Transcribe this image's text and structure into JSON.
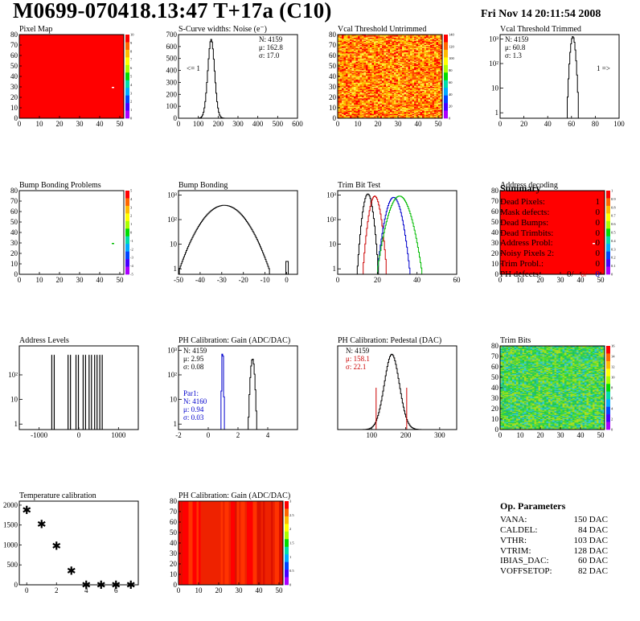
{
  "header": {
    "title": "M0699-070418.13:47 T+17a (C10)",
    "date": "Fri Nov 14 20:11:54 2008"
  },
  "summary": {
    "title": "Summary",
    "rows": [
      {
        "label": "Dead Pixels:",
        "value": "1"
      },
      {
        "label": "Mask defects:",
        "value": "0"
      },
      {
        "label": "Dead Bumps:",
        "value": "0"
      },
      {
        "label": "Dead Trimbits:",
        "value": "0"
      },
      {
        "label": "Address Probl:",
        "value": "0"
      },
      {
        "label": "Noisy Pixels 2:",
        "value": "0"
      },
      {
        "label": "Trim Probl.:",
        "value": "0"
      }
    ],
    "ph_defects": {
      "label": "PH defects:",
      "values": [
        "0/",
        "0/",
        "0"
      ],
      "colors": [
        "#000000",
        "#cc0000",
        "#0000cc"
      ]
    }
  },
  "op_params": {
    "title": "Op. Parameters",
    "rows": [
      {
        "label": "VANA:",
        "value": "150 DAC"
      },
      {
        "label": "CALDEL:",
        "value": "84 DAC"
      },
      {
        "label": "VTHR:",
        "value": "103 DAC"
      },
      {
        "label": "VTRIM:",
        "value": "128 DAC"
      },
      {
        "label": "IBIAS_DAC:",
        "value": "60 DAC"
      },
      {
        "label": "VOFFSETOP:",
        "value": "82 DAC"
      }
    ]
  },
  "chart_data": [
    {
      "id": "pixel_map",
      "type": "heatmap",
      "title": "Pixel Map",
      "xlim": [
        0,
        52
      ],
      "ylim": [
        0,
        80
      ],
      "xticks": [
        0,
        10,
        20,
        30,
        40,
        50
      ],
      "yticks": [
        0,
        10,
        20,
        30,
        40,
        50,
        60,
        70,
        80
      ],
      "fill": "uniform",
      "fill_color": "#ff0000",
      "highlights": [
        {
          "x": 46,
          "y": 30,
          "color": "#ffffff"
        }
      ],
      "zlim": [
        0,
        10
      ],
      "zticks": [
        "0",
        "1",
        "2",
        "3",
        "4",
        "5",
        "6",
        "7",
        "8",
        "9",
        "10"
      ]
    },
    {
      "id": "scurve_noise",
      "type": "line",
      "title": "S-Curve widths: Noise (e⁻)",
      "xlim": [
        0,
        600
      ],
      "ylim": [
        0,
        700
      ],
      "xticks": [
        0,
        100,
        200,
        300,
        400,
        500,
        600
      ],
      "yticks": [
        0,
        100,
        200,
        300,
        400,
        500,
        600,
        700
      ],
      "stats": [
        "N: 4159",
        "μ: 162.8",
        "σ: 17.0"
      ],
      "annotation": "<= 1",
      "curves": [
        {
          "type": "gauss",
          "mean": 162.8,
          "sigma": 17.0,
          "peak": 660,
          "color": "#000000"
        }
      ]
    },
    {
      "id": "vcal_untrimmed",
      "type": "heatmap",
      "title": "Vcal Threshold Untrimmed",
      "xlim": [
        0,
        52
      ],
      "ylim": [
        0,
        80
      ],
      "xticks": [
        0,
        10,
        20,
        30,
        40,
        50
      ],
      "yticks": [
        0,
        10,
        20,
        30,
        40,
        50,
        60,
        70,
        80
      ],
      "fill": "noise",
      "palette": [
        "#ff0000",
        "#ff4400",
        "#ff7700",
        "#ffaa00",
        "#ffcc00",
        "#ffee44"
      ],
      "zlim": [
        0,
        140
      ],
      "zticks": [
        "0",
        "20",
        "40",
        "60",
        "80",
        "100",
        "120",
        "140"
      ]
    },
    {
      "id": "vcal_trimmed",
      "type": "line",
      "title": "Vcal Threshold Trimmed",
      "xlim": [
        0,
        100
      ],
      "log_y": true,
      "ylim": [
        0.6,
        1500
      ],
      "xticks": [
        0,
        20,
        40,
        60,
        80,
        100
      ],
      "ytick_labels": [
        {
          "v": 1,
          "t": "1"
        },
        {
          "v": 10,
          "t": "10"
        },
        {
          "v": 100,
          "t": "10²"
        },
        {
          "v": 1000,
          "t": "10³"
        }
      ],
      "stats": [
        "N: 4159",
        "μ: 60.8",
        "σ: 1.3"
      ],
      "annotation": "1 =>",
      "curves": [
        {
          "type": "gauss",
          "mean": 60.8,
          "sigma": 1.3,
          "peak": 1250,
          "color": "#000000"
        }
      ]
    },
    {
      "id": "bump_problems",
      "type": "heatmap",
      "title": "Bump Bonding Problems",
      "xlim": [
        0,
        52
      ],
      "ylim": [
        0,
        80
      ],
      "xticks": [
        0,
        10,
        20,
        30,
        40,
        50
      ],
      "yticks": [
        0,
        10,
        20,
        30,
        40,
        50,
        60,
        70,
        80
      ],
      "fill": "none",
      "highlights": [
        {
          "x": 46,
          "y": 30,
          "color": "#00bb00"
        }
      ],
      "zlim": [
        -5,
        5
      ],
      "zticks": [
        "-5",
        "-4",
        "-3",
        "-2",
        "-1",
        "0",
        "1",
        "2",
        "3",
        "4",
        "5"
      ]
    },
    {
      "id": "bump_bonding",
      "type": "line",
      "title": "Bump Bonding",
      "xlim": [
        -50,
        5
      ],
      "log_y": true,
      "ylim": [
        0.6,
        1500
      ],
      "xticks": [
        -50,
        -40,
        -30,
        -20,
        -10,
        0
      ],
      "ytick_labels": [
        {
          "v": 1,
          "t": "1"
        },
        {
          "v": 10,
          "t": "10"
        },
        {
          "v": 100,
          "t": "10²"
        },
        {
          "v": 1000,
          "t": "10³"
        }
      ],
      "curves": [
        {
          "type": "gauss",
          "mean": -29,
          "sigma": 6,
          "peak": 380,
          "color": "#000000",
          "tail_at": 0
        }
      ]
    },
    {
      "id": "trim_bit_test",
      "type": "line",
      "title": "Trim Bit Test",
      "xlim": [
        0,
        60
      ],
      "log_y": true,
      "ylim": [
        0.6,
        1500
      ],
      "xticks": [
        0,
        20,
        40,
        60
      ],
      "ytick_labels": [
        {
          "v": 1,
          "t": "1"
        },
        {
          "v": 10,
          "t": "10"
        },
        {
          "v": 100,
          "t": "10²"
        },
        {
          "v": 1000,
          "t": "10³"
        }
      ],
      "curves": [
        {
          "type": "gauss",
          "mean": 15,
          "sigma": 1.4,
          "peak": 1100,
          "color": "#000000"
        },
        {
          "type": "gauss",
          "mean": 18.5,
          "sigma": 1.6,
          "peak": 900,
          "color": "#cc0000"
        },
        {
          "type": "gauss",
          "mean": 28,
          "sigma": 2.2,
          "peak": 800,
          "color": "#0000cc"
        },
        {
          "type": "gauss",
          "mean": 31,
          "sigma": 3.0,
          "peak": 900,
          "color": "#00bb00"
        }
      ]
    },
    {
      "id": "address_decoding",
      "type": "heatmap",
      "title": "Address decoding",
      "xlim": [
        0,
        52
      ],
      "ylim": [
        0,
        80
      ],
      "xticks": [
        0,
        10,
        20,
        30,
        40,
        50
      ],
      "yticks": [
        0,
        10,
        20,
        30,
        40,
        50,
        60,
        70,
        80
      ],
      "fill": "uniform",
      "fill_color": "#ff0000",
      "highlights": [
        {
          "x": 46,
          "y": 30,
          "color": "#ffffff"
        }
      ],
      "zlim": [
        0,
        1
      ],
      "zticks": [
        "0",
        "0.1",
        "0.2",
        "0.3",
        "0.4",
        "0.5",
        "0.6",
        "0.7",
        "0.8",
        "0.9",
        "1"
      ]
    },
    {
      "id": "address_levels",
      "type": "line",
      "title": "Address Levels",
      "xlim": [
        -1500,
        1500
      ],
      "log_y": true,
      "ylim": [
        0.6,
        1500
      ],
      "xticks": [
        -1000,
        0,
        1000
      ],
      "ytick_labels": [
        {
          "v": 1,
          "t": "1"
        },
        {
          "v": 10,
          "t": "10"
        },
        {
          "v": 100,
          "t": "10²"
        }
      ],
      "spikes": [
        -650,
        -240,
        -40,
        140,
        290,
        430,
        560
      ],
      "spike_height": 650
    },
    {
      "id": "ph_gain",
      "type": "line",
      "title": "PH Calibration: Gain (ADC/DAC)",
      "xlim": [
        -2,
        6
      ],
      "log_y": true,
      "ylim": [
        0.6,
        1500
      ],
      "xticks": [
        -2,
        0,
        2,
        4
      ],
      "ytick_labels": [
        {
          "v": 1,
          "t": "1"
        },
        {
          "v": 10,
          "t": "10"
        },
        {
          "v": 100,
          "t": "10²"
        },
        {
          "v": 1000,
          "t": "10³"
        }
      ],
      "stats": [
        "N: 4159",
        "μ: 2.95",
        "σ: 0.08"
      ],
      "stats2": [
        "Par1:",
        "N: 4160",
        "μ: 0.94",
        "σ: 0.03"
      ],
      "curves": [
        {
          "type": "gauss",
          "mean": 2.95,
          "sigma": 0.08,
          "peak": 450,
          "color": "#000000"
        },
        {
          "type": "gauss",
          "mean": 0.94,
          "sigma": 0.03,
          "peak": 1000,
          "color": "#0000cc"
        }
      ]
    },
    {
      "id": "ph_pedestal",
      "type": "line",
      "title": "PH Calibration: Pedestal (DAC)",
      "xlim": [
        0,
        350
      ],
      "ylim": [
        0,
        80
      ],
      "xticks": [
        100,
        200,
        300
      ],
      "stats": [
        "N: 4159",
        "μ: 158.1",
        "σ: 22.1"
      ],
      "curves": [
        {
          "type": "gauss",
          "mean": 158.1,
          "sigma": 22.1,
          "peak": 72,
          "color": "#000000",
          "red_hatch": true
        }
      ],
      "markers": [
        113,
        203
      ]
    },
    {
      "id": "trim_bits",
      "type": "heatmap",
      "title": "Trim Bits",
      "xlim": [
        0,
        52
      ],
      "ylim": [
        0,
        80
      ],
      "xticks": [
        0,
        10,
        20,
        30,
        40,
        50
      ],
      "yticks": [
        0,
        10,
        20,
        30,
        40,
        50,
        60,
        70,
        80
      ],
      "fill": "noise",
      "palette": [
        "#22cc44",
        "#44dd33",
        "#88dd22",
        "#22bb88",
        "#33cccc",
        "#aadd22"
      ],
      "zlim": [
        0,
        16
      ],
      "zticks": [
        "0",
        "2",
        "4",
        "6",
        "8",
        "10",
        "12",
        "14",
        "16"
      ]
    },
    {
      "id": "temperature_calibration",
      "type": "scatter",
      "title": "Temperature calibration",
      "xlim": [
        -0.5,
        7.5
      ],
      "ylim": [
        0,
        2100
      ],
      "xticks": [
        0,
        2,
        4,
        6
      ],
      "yticks": [
        0,
        500,
        1000,
        1500,
        2000
      ],
      "x": [
        0,
        1,
        2,
        3,
        4,
        5,
        6,
        7
      ],
      "y": [
        1880,
        1520,
        980,
        350,
        0,
        0,
        0,
        0
      ]
    },
    {
      "id": "ph_gain_map",
      "type": "heatmap",
      "title": "PH Calibration: Gain (ADC/DAC)",
      "xlim": [
        0,
        52
      ],
      "ylim": [
        0,
        80
      ],
      "xticks": [
        0,
        10,
        20,
        30,
        40,
        50
      ],
      "yticks": [
        0,
        10,
        20,
        30,
        40,
        50,
        60,
        70,
        80
      ],
      "fill": "columns",
      "palette": [
        "#ff0000",
        "#ee2200",
        "#dd1100",
        "#ff3300"
      ],
      "zlim": [
        0,
        3
      ],
      "zticks": [
        "0",
        "0.5",
        "1",
        "1.5",
        "2",
        "2.5",
        "3"
      ]
    }
  ]
}
